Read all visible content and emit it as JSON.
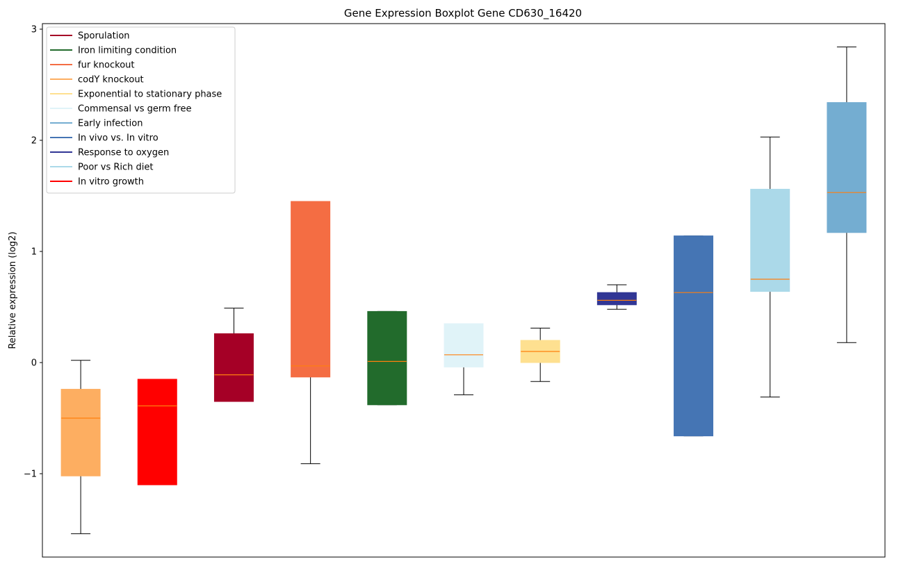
{
  "chart_data": {
    "type": "boxplot",
    "title": "Gene Expression Boxplot Gene CD630_16420",
    "xlabel": "",
    "ylabel": "Relative expression (log2)",
    "ylim": [
      -1.75,
      3.05
    ],
    "yticks": [
      -1,
      0,
      1,
      2,
      3
    ],
    "ytick_labels": [
      "−1",
      "0",
      "1",
      "2",
      "3"
    ],
    "grid": false,
    "legend_placement": "top-left",
    "legend": [
      {
        "label": "Sporulation",
        "color": "#a50026"
      },
      {
        "label": "Iron limiting condition",
        "color": "#226b2c"
      },
      {
        "label": "fur knockout",
        "color": "#f46d43"
      },
      {
        "label": "codY knockout",
        "color": "#fdae61"
      },
      {
        "label": "Exponential to stationary phase",
        "color": "#fee090"
      },
      {
        "label": "Commensal vs germ free",
        "color": "#e0f3f8"
      },
      {
        "label": "Early infection",
        "color": "#74add1"
      },
      {
        "label": "In vivo vs. In vitro",
        "color": "#4575b4"
      },
      {
        "label": "Response to oxygen",
        "color": "#313695"
      },
      {
        "label": "Poor vs Rich diet",
        "color": "#abd9e9"
      },
      {
        "label": "In vitro growth",
        "color": "#ff0000"
      }
    ],
    "boxes": [
      {
        "condition": "codY knockout",
        "color": "#fdae61",
        "whislo": -1.54,
        "q1": -1.02,
        "med": -0.5,
        "q3": -0.24,
        "whishi": 0.02
      },
      {
        "condition": "In vitro growth",
        "color": "#ff0000",
        "whislo": -1.1,
        "q1": -1.1,
        "med": -0.39,
        "q3": -0.15,
        "whishi": -0.15
      },
      {
        "condition": "Sporulation",
        "color": "#a50026",
        "whislo": -0.35,
        "q1": -0.35,
        "med": -0.11,
        "q3": 0.26,
        "whishi": 0.49
      },
      {
        "condition": "fur knockout",
        "color": "#f46d43",
        "whislo": -0.91,
        "q1": -0.13,
        "med": -0.03,
        "q3": 1.45,
        "whishi": 1.45
      },
      {
        "condition": "Iron limiting condition",
        "color": "#226b2c",
        "whislo": -0.38,
        "q1": -0.38,
        "med": 0.01,
        "q3": 0.46,
        "whishi": 0.46
      },
      {
        "condition": "Commensal vs germ free",
        "color": "#e0f3f8",
        "whislo": -0.29,
        "q1": -0.04,
        "med": 0.07,
        "q3": 0.35,
        "whishi": 0.35
      },
      {
        "condition": "Exponential to stationary phase",
        "color": "#fee090",
        "whislo": -0.17,
        "q1": 0.0,
        "med": 0.1,
        "q3": 0.2,
        "whishi": 0.31
      },
      {
        "condition": "Response to oxygen",
        "color": "#313695",
        "whislo": 0.48,
        "q1": 0.52,
        "med": 0.56,
        "q3": 0.63,
        "whishi": 0.7
      },
      {
        "condition": "In vivo vs. In vitro",
        "color": "#4575b4",
        "whislo": -0.66,
        "q1": -0.66,
        "med": 0.63,
        "q3": 1.14,
        "whishi": 1.14
      },
      {
        "condition": "Poor vs Rich diet",
        "color": "#abd9e9",
        "whislo": -0.31,
        "q1": 0.64,
        "med": 0.75,
        "q3": 1.56,
        "whishi": 2.03
      },
      {
        "condition": "Early infection",
        "color": "#74add1",
        "whislo": 0.18,
        "q1": 1.17,
        "med": 1.53,
        "q3": 2.34,
        "whishi": 2.84
      }
    ],
    "median_color": "#ff7f0e"
  }
}
